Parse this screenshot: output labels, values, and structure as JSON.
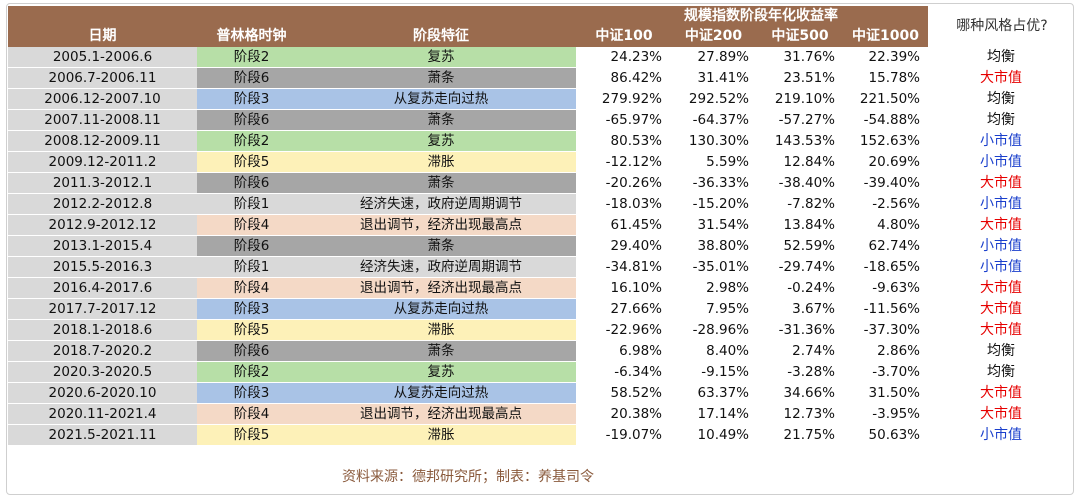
{
  "header": {
    "super": "规模指数阶段年化收益率",
    "style_question": "哪种风格占优?",
    "cols": [
      "日期",
      "普林格时钟",
      "阶段特征",
      "中证100",
      "中证200",
      "中证500",
      "中证1000"
    ]
  },
  "colors": {
    "header_bg": "#9a6b4e",
    "date_bg": "#d9d9d9",
    "stage1": "#d9d9d9",
    "stage2": "#b7dfa7",
    "stage3": "#a9c3e6",
    "stage4": "#f4d9c6",
    "stage5": "#fdf1b8",
    "stage6": "#a6a6a6",
    "balanced": "#111111",
    "large_cap": "#e60000",
    "small_cap": "#1a3fcc"
  },
  "rows": [
    {
      "date": "2005.1-2006.6",
      "phase": "阶段2",
      "stage": 2,
      "feature": "复苏",
      "v1": "24.23%",
      "v2": "27.89%",
      "v3": "31.76%",
      "v4": "22.39%",
      "style": "均衡",
      "style_type": "balanced"
    },
    {
      "date": "2006.7-2006.11",
      "phase": "阶段6",
      "stage": 6,
      "feature": "萧条",
      "v1": "86.42%",
      "v2": "31.41%",
      "v3": "23.51%",
      "v4": "15.78%",
      "style": "大市值",
      "style_type": "large_cap"
    },
    {
      "date": "2006.12-2007.10",
      "phase": "阶段3",
      "stage": 3,
      "feature": "从复苏走向过热",
      "v1": "279.92%",
      "v2": "292.52%",
      "v3": "219.10%",
      "v4": "221.50%",
      "style": "均衡",
      "style_type": "balanced"
    },
    {
      "date": "2007.11-2008.11",
      "phase": "阶段6",
      "stage": 6,
      "feature": "萧条",
      "v1": "-65.97%",
      "v2": "-64.37%",
      "v3": "-57.27%",
      "v4": "-54.88%",
      "style": "均衡",
      "style_type": "balanced"
    },
    {
      "date": "2008.12-2009.11",
      "phase": "阶段2",
      "stage": 2,
      "feature": "复苏",
      "v1": "80.53%",
      "v2": "130.30%",
      "v3": "143.53%",
      "v4": "152.63%",
      "style": "小市值",
      "style_type": "small_cap"
    },
    {
      "date": "2009.12-2011.2",
      "phase": "阶段5",
      "stage": 5,
      "feature": "滞胀",
      "v1": "-12.12%",
      "v2": "5.59%",
      "v3": "12.84%",
      "v4": "20.69%",
      "style": "小市值",
      "style_type": "small_cap"
    },
    {
      "date": "2011.3-2012.1",
      "phase": "阶段6",
      "stage": 6,
      "feature": "萧条",
      "v1": "-20.26%",
      "v2": "-36.33%",
      "v3": "-38.40%",
      "v4": "-39.40%",
      "style": "大市值",
      "style_type": "large_cap"
    },
    {
      "date": "2012.2-2012.8",
      "phase": "阶段1",
      "stage": 1,
      "feature": "经济失速，政府逆周期调节",
      "v1": "-18.03%",
      "v2": "-15.20%",
      "v3": "-7.82%",
      "v4": "-2.56%",
      "style": "小市值",
      "style_type": "small_cap"
    },
    {
      "date": "2012.9-2012.12",
      "phase": "阶段4",
      "stage": 4,
      "feature": "退出调节，经济出现最高点",
      "v1": "61.45%",
      "v2": "31.54%",
      "v3": "13.84%",
      "v4": "4.80%",
      "style": "大市值",
      "style_type": "large_cap"
    },
    {
      "date": "2013.1-2015.4",
      "phase": "阶段6",
      "stage": 6,
      "feature": "萧条",
      "v1": "29.40%",
      "v2": "38.80%",
      "v3": "52.59%",
      "v4": "62.74%",
      "style": "小市值",
      "style_type": "small_cap"
    },
    {
      "date": "2015.5-2016.3",
      "phase": "阶段1",
      "stage": 1,
      "feature": "经济失速，政府逆周期调节",
      "v1": "-34.81%",
      "v2": "-35.01%",
      "v3": "-29.74%",
      "v4": "-18.65%",
      "style": "小市值",
      "style_type": "small_cap"
    },
    {
      "date": "2016.4-2017.6",
      "phase": "阶段4",
      "stage": 4,
      "feature": "退出调节，经济出现最高点",
      "v1": "16.10%",
      "v2": "2.98%",
      "v3": "-0.24%",
      "v4": "-9.63%",
      "style": "大市值",
      "style_type": "large_cap"
    },
    {
      "date": "2017.7-2017.12",
      "phase": "阶段3",
      "stage": 3,
      "feature": "从复苏走向过热",
      "v1": "27.66%",
      "v2": "7.95%",
      "v3": "3.67%",
      "v4": "-11.56%",
      "style": "大市值",
      "style_type": "large_cap"
    },
    {
      "date": "2018.1-2018.6",
      "phase": "阶段5",
      "stage": 5,
      "feature": "滞胀",
      "v1": "-22.96%",
      "v2": "-28.96%",
      "v3": "-31.36%",
      "v4": "-37.30%",
      "style": "大市值",
      "style_type": "large_cap"
    },
    {
      "date": "2018.7-2020.2",
      "phase": "阶段6",
      "stage": 6,
      "feature": "萧条",
      "v1": "6.98%",
      "v2": "8.40%",
      "v3": "2.74%",
      "v4": "2.86%",
      "style": "均衡",
      "style_type": "balanced"
    },
    {
      "date": "2020.3-2020.5",
      "phase": "阶段2",
      "stage": 2,
      "feature": "复苏",
      "v1": "-6.34%",
      "v2": "-9.15%",
      "v3": "-3.28%",
      "v4": "-3.70%",
      "style": "均衡",
      "style_type": "balanced"
    },
    {
      "date": "2020.6-2020.10",
      "phase": "阶段3",
      "stage": 3,
      "feature": "从复苏走向过热",
      "v1": "58.52%",
      "v2": "63.37%",
      "v3": "34.66%",
      "v4": "31.50%",
      "style": "大市值",
      "style_type": "large_cap"
    },
    {
      "date": "2020.11-2021.4",
      "phase": "阶段4",
      "stage": 4,
      "feature": "退出调节，经济出现最高点",
      "v1": "20.38%",
      "v2": "17.14%",
      "v3": "12.73%",
      "v4": "-3.95%",
      "style": "大市值",
      "style_type": "large_cap"
    },
    {
      "date": "2021.5-2021.11",
      "phase": "阶段5",
      "stage": 5,
      "feature": "滞胀",
      "v1": "-19.07%",
      "v2": "10.49%",
      "v3": "21.75%",
      "v4": "50.63%",
      "style": "小市值",
      "style_type": "small_cap"
    }
  ],
  "source": "资料来源：德邦研究所；制表：养基司令"
}
